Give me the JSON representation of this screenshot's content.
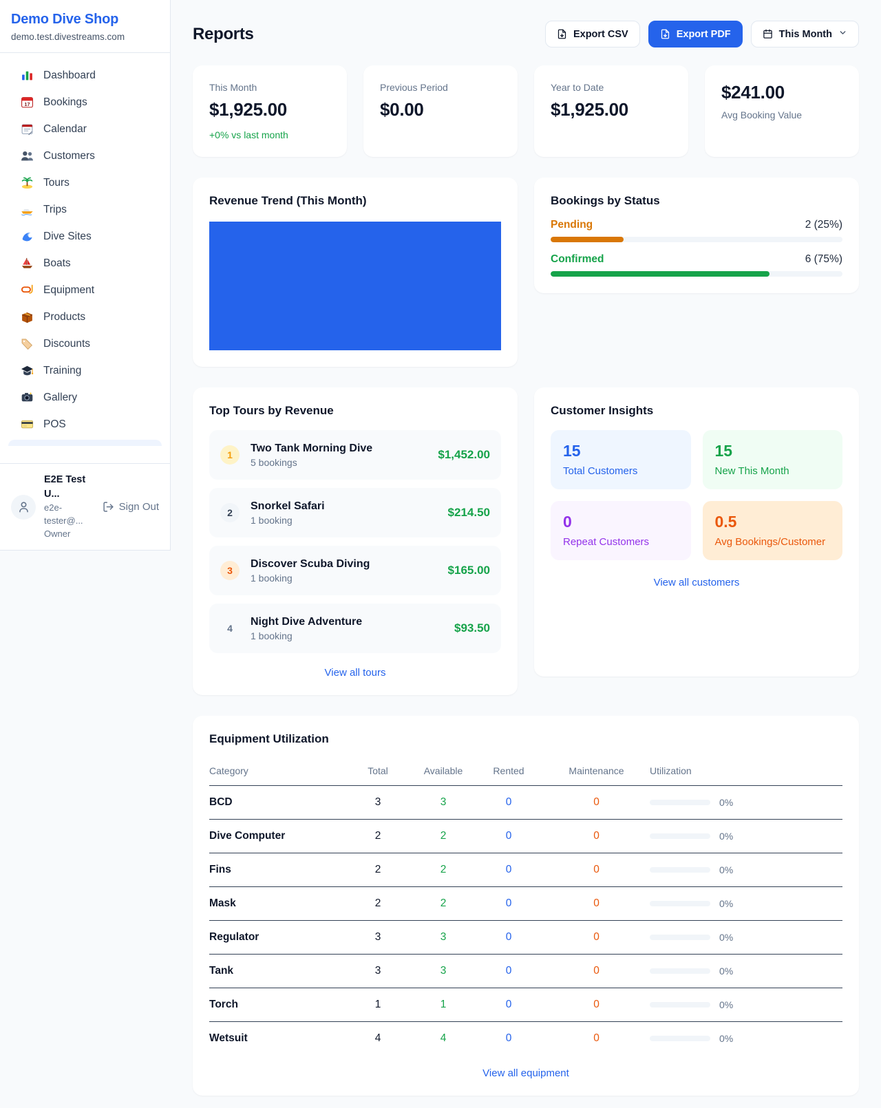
{
  "sidebar": {
    "brand": {
      "name": "Demo Dive Shop",
      "domain": "demo.test.divestreams.com"
    },
    "nav": [
      {
        "icon": "dashboard-icon",
        "label": "Dashboard"
      },
      {
        "icon": "bookings-icon",
        "label": "Bookings"
      },
      {
        "icon": "calendar-icon",
        "label": "Calendar"
      },
      {
        "icon": "customers-icon",
        "label": "Customers"
      },
      {
        "icon": "tours-icon",
        "label": "Tours"
      },
      {
        "icon": "trips-icon",
        "label": "Trips"
      },
      {
        "icon": "dive-sites-icon",
        "label": "Dive Sites"
      },
      {
        "icon": "boats-icon",
        "label": "Boats"
      },
      {
        "icon": "equipment-icon",
        "label": "Equipment"
      },
      {
        "icon": "products-icon",
        "label": "Products"
      },
      {
        "icon": "discounts-icon",
        "label": "Discounts"
      },
      {
        "icon": "training-icon",
        "label": "Training"
      },
      {
        "icon": "gallery-icon",
        "label": "Gallery"
      },
      {
        "icon": "pos-icon",
        "label": "POS"
      }
    ],
    "user": {
      "name": "E2E Test U...",
      "email": "e2e-tester@...",
      "role": "Owner",
      "sign_out": "Sign Out"
    }
  },
  "header": {
    "title": "Reports",
    "export_csv": "Export CSV",
    "export_pdf": "Export PDF",
    "period": "This Month"
  },
  "stats": [
    {
      "label": "This Month",
      "value": "$1,925.00",
      "delta": "+0% vs last month",
      "value_first": false
    },
    {
      "label": "Previous Period",
      "value": "$0.00",
      "value_first": false
    },
    {
      "label": "Year to Date",
      "value": "$1,925.00",
      "value_first": false
    },
    {
      "label": "Avg Booking Value",
      "value": "$241.00",
      "value_first": true
    }
  ],
  "revenue_trend": {
    "title": "Revenue Trend (This Month)",
    "bar_color": "#2563eb"
  },
  "chart_data": {
    "type": "bar",
    "title": "Revenue Trend (This Month)",
    "categories": [
      "This Month"
    ],
    "values": [
      1925
    ],
    "xlabel": "",
    "ylabel": "",
    "note": "single full-width solid blue bar, no axes or gridlines"
  },
  "bookings_by_status": {
    "title": "Bookings by Status",
    "statuses": [
      {
        "label": "Pending",
        "count": "2 (25%)",
        "pct": 25,
        "color": "#d97706"
      },
      {
        "label": "Confirmed",
        "count": "6 (75%)",
        "pct": 75,
        "color": "#16a34a"
      }
    ]
  },
  "top_tours": {
    "title": "Top Tours by Revenue",
    "link": "View all tours",
    "items": [
      {
        "rank": "1",
        "name": "Two Tank Morning Dive",
        "bookings": "5 bookings",
        "revenue": "$1,452.00",
        "badge_bg": "#fef3c7",
        "badge_color": "#f59e0b"
      },
      {
        "rank": "2",
        "name": "Snorkel Safari",
        "bookings": "1 booking",
        "revenue": "$214.50",
        "badge_bg": "#f1f5f9",
        "badge_color": "#334155"
      },
      {
        "rank": "3",
        "name": "Discover Scuba Diving",
        "bookings": "1 booking",
        "revenue": "$165.00",
        "badge_bg": "#ffedd5",
        "badge_color": "#ea580c"
      },
      {
        "rank": "4",
        "name": "Night Dive Adventure",
        "bookings": "1 booking",
        "revenue": "$93.50",
        "badge_bg": "transparent",
        "badge_color": "#64748b"
      }
    ]
  },
  "customer_insights": {
    "title": "Customer Insights",
    "link": "View all customers",
    "cards": [
      {
        "value": "15",
        "label": "Total Customers",
        "bg": "#eff6ff",
        "color": "#2563eb"
      },
      {
        "value": "15",
        "label": "New This Month",
        "bg": "#f0fdf4",
        "color": "#16a34a"
      },
      {
        "value": "0",
        "label": "Repeat Customers",
        "bg": "#faf5ff",
        "color": "#9333ea"
      },
      {
        "value": "0.5",
        "label": "Avg Bookings/Customer",
        "bg": "#ffedd5",
        "color": "#ea580c"
      }
    ]
  },
  "equipment": {
    "title": "Equipment Utilization",
    "link": "View all equipment",
    "columns": [
      "Category",
      "Total",
      "Available",
      "Rented",
      "Maintenance",
      "Utilization"
    ],
    "rows": [
      {
        "category": "BCD",
        "total": "3",
        "available": "3",
        "rented": "0",
        "maintenance": "0",
        "utilization": "0%",
        "pct": 0
      },
      {
        "category": "Dive Computer",
        "total": "2",
        "available": "2",
        "rented": "0",
        "maintenance": "0",
        "utilization": "0%",
        "pct": 0
      },
      {
        "category": "Fins",
        "total": "2",
        "available": "2",
        "rented": "0",
        "maintenance": "0",
        "utilization": "0%",
        "pct": 0
      },
      {
        "category": "Mask",
        "total": "2",
        "available": "2",
        "rented": "0",
        "maintenance": "0",
        "utilization": "0%",
        "pct": 0
      },
      {
        "category": "Regulator",
        "total": "3",
        "available": "3",
        "rented": "0",
        "maintenance": "0",
        "utilization": "0%",
        "pct": 0
      },
      {
        "category": "Tank",
        "total": "3",
        "available": "3",
        "rented": "0",
        "maintenance": "0",
        "utilization": "0%",
        "pct": 0
      },
      {
        "category": "Torch",
        "total": "1",
        "available": "1",
        "rented": "0",
        "maintenance": "0",
        "utilization": "0%",
        "pct": 0
      },
      {
        "category": "Wetsuit",
        "total": "4",
        "available": "4",
        "rented": "0",
        "maintenance": "0",
        "utilization": "0%",
        "pct": 0
      }
    ]
  }
}
